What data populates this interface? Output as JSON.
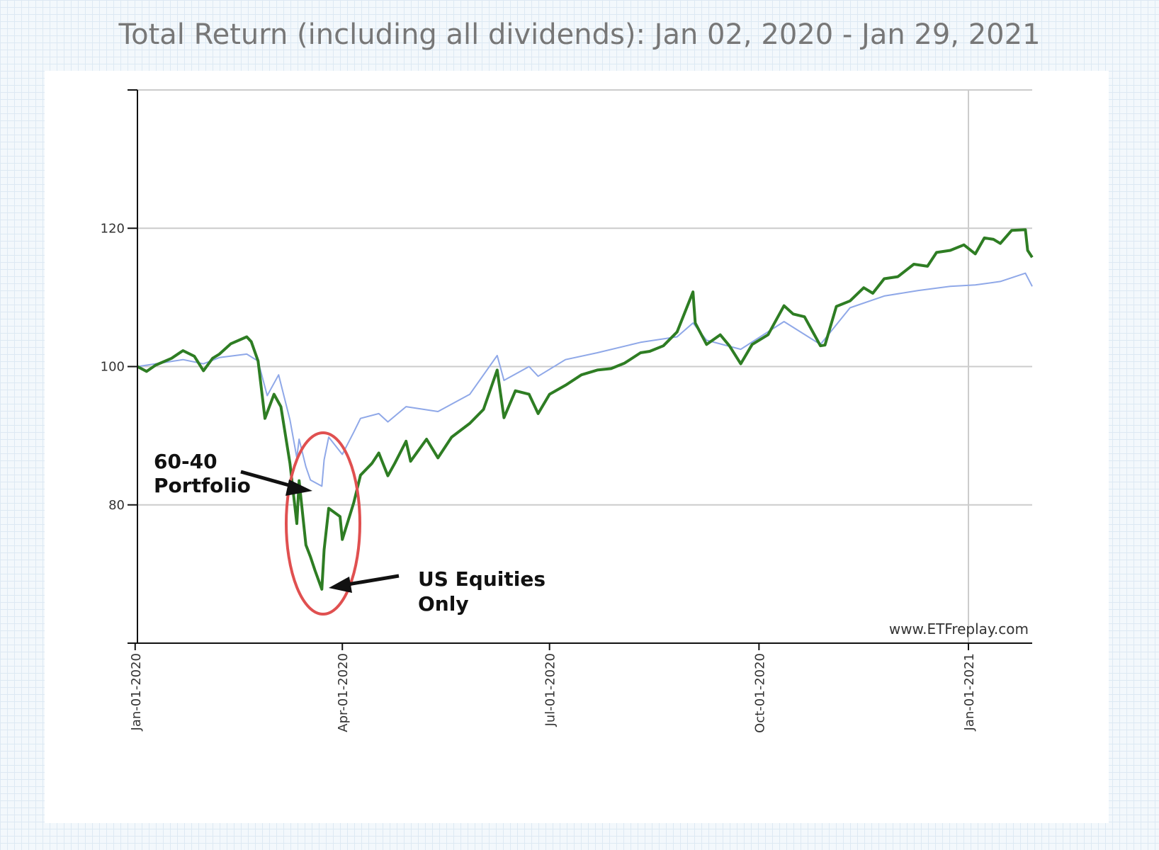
{
  "title": "Total Return (including all dividends): Jan 02, 2020 - Jan 29, 2021",
  "credit": "www.ETFreplay.com",
  "annotations": {
    "portfolio_line1": "60-40",
    "portfolio_line2": "Portfolio",
    "equities_line1": "US Equities",
    "equities_line2": "Only"
  },
  "colors": {
    "us_equities": "#2e7d23",
    "portfolio_60_40": "#8fa8e8",
    "highlight_ellipse": "#e05050",
    "gridline": "#cccccc",
    "axis": "#111111"
  },
  "chart_data": {
    "type": "line",
    "title": "Total Return (including all dividends): Jan 02, 2020 - Jan 29, 2021",
    "xlim": [
      "2020-01-02",
      "2021-01-29"
    ],
    "ylim": [
      60,
      140
    ],
    "yticks": [
      80,
      100,
      120
    ],
    "xticks": [
      "2020-01-01",
      "2020-04-01",
      "2020-07-01",
      "2020-10-01",
      "2021-01-01"
    ],
    "xtick_labels": [
      "Jan-01-2020",
      "Apr-01-2020",
      "Jul-01-2020",
      "Oct-01-2020",
      "Jan-01-2021"
    ],
    "grid": true,
    "series": [
      {
        "key": "us_equities",
        "points": [
          [
            "2020-01-02",
            100
          ],
          [
            "2020-01-06",
            99.3
          ],
          [
            "2020-01-10",
            100.2
          ],
          [
            "2020-01-17",
            101.2
          ],
          [
            "2020-01-22",
            102.3
          ],
          [
            "2020-01-27",
            101.5
          ],
          [
            "2020-01-31",
            99.4
          ],
          [
            "2020-02-04",
            101.2
          ],
          [
            "2020-02-07",
            101.8
          ],
          [
            "2020-02-12",
            103.3
          ],
          [
            "2020-02-19",
            104.3
          ],
          [
            "2020-02-21",
            103.6
          ],
          [
            "2020-02-24",
            100.8
          ],
          [
            "2020-02-27",
            92.5
          ],
          [
            "2020-03-02",
            96.0
          ],
          [
            "2020-03-05",
            94.2
          ],
          [
            "2020-03-09",
            86.0
          ],
          [
            "2020-03-12",
            77.3
          ],
          [
            "2020-03-13",
            83.5
          ],
          [
            "2020-03-16",
            74.2
          ],
          [
            "2020-03-18",
            72.5
          ],
          [
            "2020-03-20",
            70.5
          ],
          [
            "2020-03-23",
            67.8
          ],
          [
            "2020-03-24",
            73.5
          ],
          [
            "2020-03-26",
            79.5
          ],
          [
            "2020-03-31",
            78.3
          ],
          [
            "2020-04-01",
            75.0
          ],
          [
            "2020-04-06",
            80.3
          ],
          [
            "2020-04-09",
            84.3
          ],
          [
            "2020-04-14",
            86.0
          ],
          [
            "2020-04-17",
            87.5
          ],
          [
            "2020-04-21",
            84.2
          ],
          [
            "2020-04-24",
            86.0
          ],
          [
            "2020-04-29",
            89.2
          ],
          [
            "2020-05-01",
            86.3
          ],
          [
            "2020-05-08",
            89.5
          ],
          [
            "2020-05-13",
            86.8
          ],
          [
            "2020-05-19",
            89.8
          ],
          [
            "2020-05-27",
            91.8
          ],
          [
            "2020-06-02",
            93.8
          ],
          [
            "2020-06-08",
            99.5
          ],
          [
            "2020-06-11",
            92.6
          ],
          [
            "2020-06-16",
            96.5
          ],
          [
            "2020-06-22",
            96.0
          ],
          [
            "2020-06-26",
            93.2
          ],
          [
            "2020-07-01",
            96.0
          ],
          [
            "2020-07-08",
            97.3
          ],
          [
            "2020-07-15",
            98.8
          ],
          [
            "2020-07-22",
            99.5
          ],
          [
            "2020-07-28",
            99.7
          ],
          [
            "2020-08-03",
            100.5
          ],
          [
            "2020-08-10",
            102.0
          ],
          [
            "2020-08-14",
            102.2
          ],
          [
            "2020-08-20",
            103.0
          ],
          [
            "2020-08-26",
            105.0
          ],
          [
            "2020-09-02",
            110.8
          ],
          [
            "2020-09-03",
            106.3
          ],
          [
            "2020-09-08",
            103.2
          ],
          [
            "2020-09-14",
            104.6
          ],
          [
            "2020-09-18",
            103.0
          ],
          [
            "2020-09-23",
            100.4
          ],
          [
            "2020-09-28",
            103.2
          ],
          [
            "2020-10-05",
            104.6
          ],
          [
            "2020-10-12",
            108.8
          ],
          [
            "2020-10-16",
            107.6
          ],
          [
            "2020-10-21",
            107.2
          ],
          [
            "2020-10-28",
            103.0
          ],
          [
            "2020-10-30",
            103.1
          ],
          [
            "2020-11-04",
            108.7
          ],
          [
            "2020-11-10",
            109.5
          ],
          [
            "2020-11-16",
            111.4
          ],
          [
            "2020-11-20",
            110.6
          ],
          [
            "2020-11-25",
            112.7
          ],
          [
            "2020-12-01",
            113.0
          ],
          [
            "2020-12-08",
            114.8
          ],
          [
            "2020-12-14",
            114.5
          ],
          [
            "2020-12-18",
            116.5
          ],
          [
            "2020-12-24",
            116.8
          ],
          [
            "2020-12-30",
            117.6
          ],
          [
            "2021-01-04",
            116.3
          ],
          [
            "2021-01-08",
            118.6
          ],
          [
            "2021-01-12",
            118.4
          ],
          [
            "2021-01-15",
            117.8
          ],
          [
            "2021-01-20",
            119.7
          ],
          [
            "2021-01-26",
            119.8
          ],
          [
            "2021-01-27",
            116.8
          ],
          [
            "2021-01-29",
            115.8
          ]
        ]
      },
      {
        "key": "portfolio_60_40",
        "points": [
          [
            "2020-01-02",
            100
          ],
          [
            "2020-01-10",
            100.4
          ],
          [
            "2020-01-22",
            101.0
          ],
          [
            "2020-01-31",
            100.4
          ],
          [
            "2020-02-07",
            101.3
          ],
          [
            "2020-02-19",
            101.8
          ],
          [
            "2020-02-24",
            100.8
          ],
          [
            "2020-02-28",
            95.8
          ],
          [
            "2020-03-04",
            98.8
          ],
          [
            "2020-03-09",
            92.3
          ],
          [
            "2020-03-12",
            86.8
          ],
          [
            "2020-03-13",
            89.5
          ],
          [
            "2020-03-16",
            85.5
          ],
          [
            "2020-03-18",
            83.6
          ],
          [
            "2020-03-23",
            82.7
          ],
          [
            "2020-03-24",
            86.5
          ],
          [
            "2020-03-26",
            89.8
          ],
          [
            "2020-04-01",
            87.3
          ],
          [
            "2020-04-06",
            90.5
          ],
          [
            "2020-04-09",
            92.5
          ],
          [
            "2020-04-17",
            93.2
          ],
          [
            "2020-04-21",
            92.0
          ],
          [
            "2020-04-29",
            94.2
          ],
          [
            "2020-05-13",
            93.5
          ],
          [
            "2020-05-27",
            96.0
          ],
          [
            "2020-06-08",
            101.6
          ],
          [
            "2020-06-11",
            98.0
          ],
          [
            "2020-06-22",
            100.0
          ],
          [
            "2020-06-26",
            98.6
          ],
          [
            "2020-07-08",
            101.0
          ],
          [
            "2020-07-22",
            102.0
          ],
          [
            "2020-08-10",
            103.5
          ],
          [
            "2020-08-26",
            104.3
          ],
          [
            "2020-09-02",
            106.3
          ],
          [
            "2020-09-08",
            103.8
          ],
          [
            "2020-09-23",
            102.5
          ],
          [
            "2020-10-12",
            106.5
          ],
          [
            "2020-10-28",
            103.2
          ],
          [
            "2020-11-10",
            108.5
          ],
          [
            "2020-11-25",
            110.2
          ],
          [
            "2020-12-10",
            111.0
          ],
          [
            "2020-12-24",
            111.6
          ],
          [
            "2021-01-04",
            111.8
          ],
          [
            "2021-01-15",
            112.3
          ],
          [
            "2021-01-26",
            113.5
          ],
          [
            "2021-01-29",
            111.6
          ]
        ]
      }
    ]
  }
}
